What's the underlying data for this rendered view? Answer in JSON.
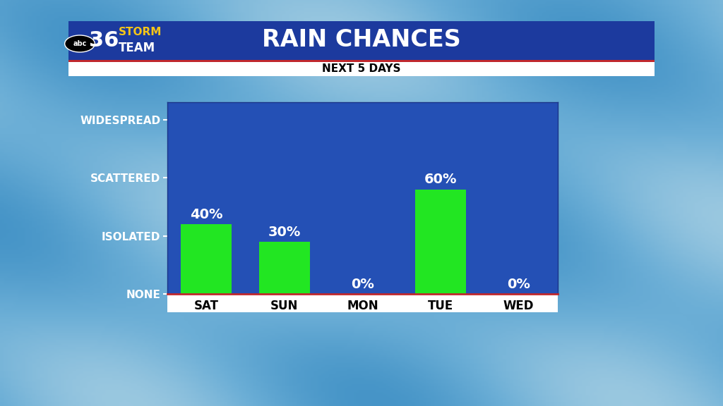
{
  "chart_data": {
    "type": "bar",
    "title": "RAIN CHANCES",
    "subtitle": "NEXT 5 DAYS",
    "categories": [
      "SAT",
      "SUN",
      "MON",
      "TUE",
      "WED"
    ],
    "values": [
      40,
      30,
      0,
      60,
      0
    ],
    "value_labels": [
      "40%",
      "30%",
      "0%",
      "60%",
      "0%"
    ],
    "data_labels": true,
    "color": "#22e622",
    "ylim": [
      0,
      110
    ],
    "yticks": [
      {
        "value": 0,
        "label": "NONE"
      },
      {
        "value": 33.3,
        "label": "ISOLATED"
      },
      {
        "value": 66.7,
        "label": "SCATTERED"
      },
      {
        "value": 100,
        "label": "WIDESPREAD"
      }
    ],
    "grid": false
  },
  "logo": {
    "network": "abc",
    "channel": "36",
    "line1": "STORM",
    "line2": "TEAM"
  }
}
